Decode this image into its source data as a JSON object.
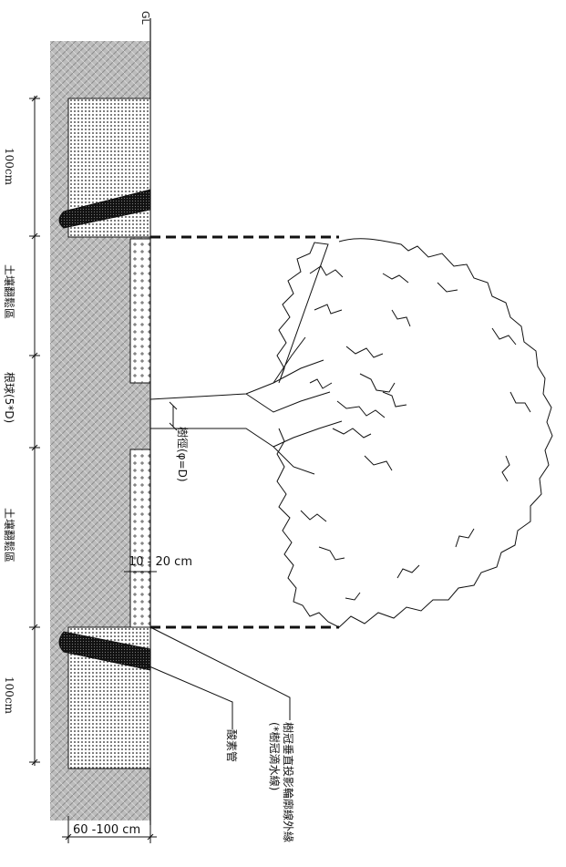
{
  "labels": {
    "gl": "GL",
    "top_100": "100cm",
    "loosen_top": "土壤翻鬆區",
    "root_ball": "根球(5*D)",
    "loosen_bottom": "土壤翻鬆區",
    "bottom_100": "100cm",
    "trunk_diameter": "樹徑(φ=D)",
    "gap": "10 - 20 cm",
    "depth": "60 -100 cm",
    "oxygen_pipe": "酸素管",
    "dripline": "樹冠垂直投影輪廓線外緣",
    "dripline_note": "(*樹冠滴水線)"
  },
  "colors": {
    "soil": "#b9b9b9",
    "line": "#111111"
  },
  "icons": [
    "tree-canopy-outline",
    "oxygen-pipe-icon"
  ]
}
